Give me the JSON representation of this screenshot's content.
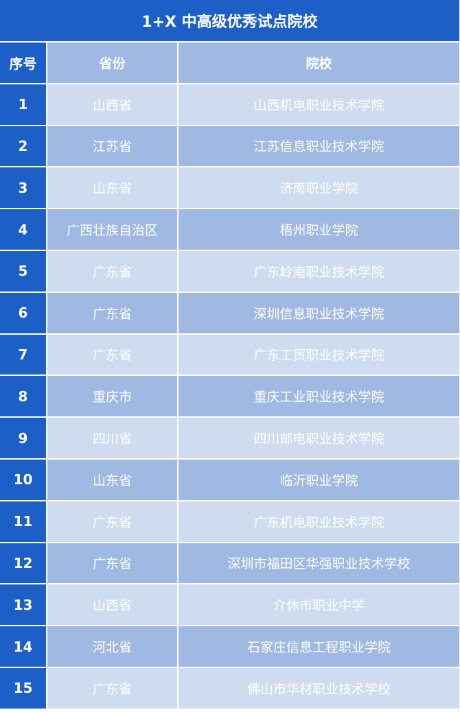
{
  "title": "1+X 中高级优秀试点院校",
  "headers": {
    "index": "序号",
    "province": "省份",
    "school": "院校"
  },
  "colors": {
    "dark": "#1c5fc6",
    "mid": "#9fb9e3",
    "light": "#cfdcf0"
  },
  "rows": [
    {
      "index": "1",
      "province": "山西省",
      "school": "山西机电职业技术学院"
    },
    {
      "index": "2",
      "province": "江苏省",
      "school": "江苏信息职业技术学院"
    },
    {
      "index": "3",
      "province": "山东省",
      "school": "济南职业学院"
    },
    {
      "index": "4",
      "province": "广西壮族自治区",
      "school": "梧州职业学院"
    },
    {
      "index": "5",
      "province": "广东省",
      "school": "广东岭南职业技术学院"
    },
    {
      "index": "6",
      "province": "广东省",
      "school": "深圳信息职业技术学院"
    },
    {
      "index": "7",
      "province": "广东省",
      "school": "广东工贸职业技术学院"
    },
    {
      "index": "8",
      "province": "重庆市",
      "school": "重庆工业职业技术学院"
    },
    {
      "index": "9",
      "province": "四川省",
      "school": "四川邮电职业技术学院"
    },
    {
      "index": "10",
      "province": "山东省",
      "school": "临沂职业学院"
    },
    {
      "index": "11",
      "province": "广东省",
      "school": "广东机电职业技术学院"
    },
    {
      "index": "12",
      "province": "广东省",
      "school": "深圳市福田区华强职业技术学校"
    },
    {
      "index": "13",
      "province": "山西省",
      "school": "介休市职业中学"
    },
    {
      "index": "14",
      "province": "河北省",
      "school": "石家庄信息工程职业学院"
    },
    {
      "index": "15",
      "province": "广东省",
      "school": "佛山市华材职业技术学校"
    }
  ]
}
